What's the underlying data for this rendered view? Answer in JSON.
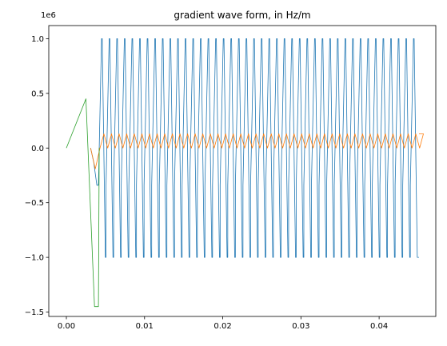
{
  "chart_data": {
    "type": "line",
    "title": "gradient wave form, in Hz/m",
    "xlabel": "",
    "ylabel": "",
    "y_offset_label": "1e6",
    "xlim": [
      -0.00225,
      0.04725
    ],
    "ylim": [
      -1.54,
      1.12
    ],
    "x_ticks": [
      0.0,
      0.01,
      0.02,
      0.03,
      0.04
    ],
    "x_tick_labels": [
      "0.00",
      "0.01",
      "0.02",
      "0.03",
      "0.04"
    ],
    "y_ticks": [
      1.0,
      0.5,
      0.0,
      -0.5,
      -1.0,
      -1.5
    ],
    "y_tick_labels": [
      "1.0",
      "0.5",
      "0.0",
      "−0.5",
      "−1.0",
      "−1.5"
    ],
    "grid": false,
    "legend": "none",
    "series": [
      {
        "color": "#1f77b4",
        "line_width": 0.8,
        "pattern": {
          "prefix": [
            [
              0.0031,
              0.0
            ],
            [
              0.0035,
              -0.13
            ],
            [
              0.0039,
              -0.34
            ]
          ],
          "periodic_start": 0.0041,
          "period": 0.000973,
          "cycles": 42,
          "shape": [
            [
              0.0,
              -0.34
            ],
            [
              0.0004,
              1.0
            ],
            [
              0.000487,
              1.0
            ],
            [
              0.000887,
              -1.0
            ],
            [
              0.000973,
              -1.0
            ]
          ],
          "end": [
            [
              0.0451,
              -1.0
            ]
          ]
        }
      },
      {
        "color": "#ff7f0e",
        "line_width": 0.8,
        "pattern": {
          "prefix": [
            [
              0.0031,
              0.0
            ],
            [
              0.0037,
              -0.19
            ],
            [
              0.0043,
              0.0
            ],
            [
              0.0048,
              0.13
            ]
          ],
          "periodic_start": 0.0048,
          "period": 0.000973,
          "cycles": 42,
          "shape": [
            [
              0.0,
              0.13
            ],
            [
              0.000487,
              0.0
            ],
            [
              0.000487,
              0.0
            ],
            [
              0.000973,
              0.13
            ]
          ],
          "end": [
            [
              0.0451,
              0.13
            ]
          ]
        }
      },
      {
        "color": "#2ca02c",
        "line_width": 0.8,
        "points": [
          [
            0.0,
            0.0
          ],
          [
            0.0025,
            0.45
          ],
          [
            0.0036,
            -1.45
          ],
          [
            0.0041,
            -1.45
          ],
          [
            0.0042,
            0.0
          ]
        ]
      }
    ]
  }
}
